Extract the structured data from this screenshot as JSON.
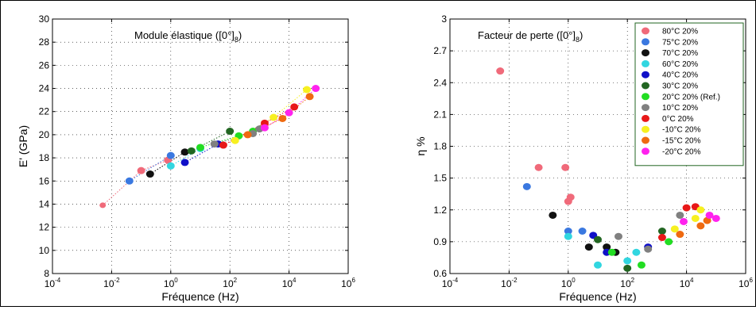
{
  "colors": {
    "80C": "#f06a7a",
    "75C": "#3a78e0",
    "70C": "#111111",
    "60C": "#31d6e0",
    "40C": "#1010c8",
    "30C": "#226622",
    "20C": "#22dd22",
    "10C": "#808080",
    "0C": "#e81818",
    "m10C": "#f7f020",
    "m15C": "#ef6a10",
    "m20C": "#ff22ee"
  },
  "chart_data": [
    {
      "type": "scatter",
      "title_main": "Module élastique ([0°]",
      "title_sub": "8",
      "title_end": ")",
      "xlabel": "Fréquence (Hz)",
      "ylabel": "E' (GPa)",
      "x_scale": "log",
      "xlim": [
        0.0001,
        1000000
      ],
      "ylim": [
        8,
        30
      ],
      "x_ticks": [
        {
          "base": "10",
          "exp": "-4"
        },
        {
          "base": "10",
          "exp": "-2"
        },
        {
          "base": "10",
          "exp": "0"
        },
        {
          "base": "10",
          "exp": "2"
        },
        {
          "base": "10",
          "exp": "4"
        },
        {
          "base": "10",
          "exp": "6"
        }
      ],
      "y_ticks": [
        "8",
        "10",
        "12",
        "14",
        "16",
        "18",
        "20",
        "22",
        "24",
        "26",
        "28",
        "30"
      ],
      "grid": true,
      "series": [
        {
          "key": "80C",
          "points": [
            [
              0.005,
              13.9
            ],
            [
              0.1,
              16.9
            ],
            [
              0.8,
              17.8
            ]
          ]
        },
        {
          "key": "75C",
          "points": [
            [
              0.04,
              16.0
            ],
            [
              1.0,
              18.2
            ]
          ]
        },
        {
          "key": "70C",
          "points": [
            [
              0.2,
              16.6
            ],
            [
              3.0,
              18.5
            ]
          ]
        },
        {
          "key": "60C",
          "points": [
            [
              1.0,
              17.3
            ],
            [
              10,
              18.8
            ]
          ]
        },
        {
          "key": "40C",
          "points": [
            [
              3.0,
              17.6
            ],
            [
              40,
              19.2
            ]
          ]
        },
        {
          "key": "30C",
          "points": [
            [
              5.0,
              18.6
            ],
            [
              100,
              20.3
            ]
          ]
        },
        {
          "key": "20C",
          "points": [
            [
              10,
              18.9
            ],
            [
              200,
              19.9
            ],
            [
              600,
              20.3
            ]
          ]
        },
        {
          "key": "10C",
          "points": [
            [
              30,
              19.2
            ],
            [
              600,
              20.1
            ],
            [
              1000,
              20.5
            ]
          ]
        },
        {
          "key": "0C",
          "points": [
            [
              60,
              19.1
            ],
            [
              1500,
              21.0
            ],
            [
              15000,
              22.4
            ]
          ]
        },
        {
          "key": "m10C",
          "points": [
            [
              150,
              19.5
            ],
            [
              3000,
              21.5
            ],
            [
              40000,
              23.9
            ]
          ]
        },
        {
          "key": "m15C",
          "points": [
            [
              400,
              20.0
            ],
            [
              6000,
              21.4
            ],
            [
              50000,
              23.3
            ]
          ]
        },
        {
          "key": "m20C",
          "points": [
            [
              1500,
              20.6
            ],
            [
              10000,
              21.9
            ],
            [
              80000,
              24.0
            ]
          ]
        }
      ]
    },
    {
      "type": "scatter",
      "title_main": "Facteur de perte ([0°]",
      "title_sub": "8",
      "title_end": ")",
      "xlabel": "Fréquence (Hz)",
      "ylabel": "η %",
      "x_scale": "log",
      "xlim": [
        0.0001,
        1000000
      ],
      "ylim": [
        0.6,
        3
      ],
      "x_ticks": [
        {
          "base": "10",
          "exp": "-4"
        },
        {
          "base": "10",
          "exp": "-2"
        },
        {
          "base": "10",
          "exp": "0"
        },
        {
          "base": "10",
          "exp": "2"
        },
        {
          "base": "10",
          "exp": "4"
        },
        {
          "base": "10",
          "exp": "6"
        }
      ],
      "y_ticks": [
        "0.6",
        "0.9",
        "1.2",
        "1.5",
        "1.8",
        "2.1",
        "2.4",
        "2.7",
        "3"
      ],
      "grid": true,
      "legend_position": "top-right",
      "legend": [
        {
          "key": "80C",
          "label": "80°C 20%"
        },
        {
          "key": "75C",
          "label": "75°C 20%"
        },
        {
          "key": "70C",
          "label": "70°C 20%"
        },
        {
          "key": "60C",
          "label": "60°C 20%"
        },
        {
          "key": "40C",
          "label": "40°C 20%"
        },
        {
          "key": "30C",
          "label": "30°C 20%"
        },
        {
          "key": "20C",
          "label": "20°C 20% (Ref.)"
        },
        {
          "key": "10C",
          "label": "10°C 20%"
        },
        {
          "key": "0C",
          "label": "0°C 20%"
        },
        {
          "key": "m10C",
          "label": "-10°C 20%"
        },
        {
          "key": "m15C",
          "label": "-15°C 20%"
        },
        {
          "key": "m20C",
          "label": "-20°C 20%"
        }
      ],
      "series": [
        {
          "key": "80C",
          "points": [
            [
              0.005,
              2.51
            ],
            [
              0.1,
              1.6
            ],
            [
              0.8,
              1.6
            ],
            [
              1.0,
              1.28
            ],
            [
              1.2,
              1.32
            ]
          ]
        },
        {
          "key": "75C",
          "points": [
            [
              0.04,
              1.42
            ],
            [
              1.0,
              1.0
            ],
            [
              3.0,
              1.0
            ]
          ]
        },
        {
          "key": "70C",
          "points": [
            [
              0.3,
              1.15
            ],
            [
              5.0,
              0.85
            ],
            [
              20,
              0.85
            ],
            [
              40,
              0.8
            ]
          ]
        },
        {
          "key": "60C",
          "points": [
            [
              1.0,
              0.95
            ],
            [
              10,
              0.68
            ],
            [
              100,
              0.72
            ],
            [
              200,
              0.8
            ]
          ]
        },
        {
          "key": "40C",
          "points": [
            [
              7.0,
              0.96
            ],
            [
              20,
              0.8
            ],
            [
              500,
              0.85
            ]
          ]
        },
        {
          "key": "30C",
          "points": [
            [
              10,
              0.92
            ],
            [
              100,
              0.65
            ],
            [
              1500,
              1.0
            ]
          ]
        },
        {
          "key": "20C",
          "points": [
            [
              30,
              0.8
            ],
            [
              300,
              0.68
            ],
            [
              2500,
              0.9
            ]
          ]
        },
        {
          "key": "10C",
          "points": [
            [
              50,
              0.95
            ],
            [
              500,
              0.83
            ],
            [
              6000,
              1.15
            ]
          ]
        },
        {
          "key": "0C",
          "points": [
            [
              1500,
              0.94
            ],
            [
              10000,
              1.22
            ],
            [
              20000,
              1.23
            ]
          ]
        },
        {
          "key": "m10C",
          "points": [
            [
              4000,
              1.02
            ],
            [
              20000,
              1.12
            ],
            [
              30000,
              1.2
            ]
          ]
        },
        {
          "key": "m15C",
          "points": [
            [
              6000,
              0.97
            ],
            [
              30000,
              1.05
            ],
            [
              50000,
              1.1
            ]
          ]
        },
        {
          "key": "m20C",
          "points": [
            [
              8000,
              1.09
            ],
            [
              60000,
              1.15
            ],
            [
              100000,
              1.12
            ]
          ]
        }
      ]
    }
  ]
}
